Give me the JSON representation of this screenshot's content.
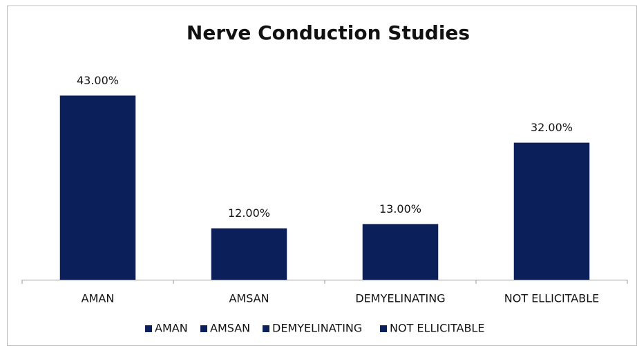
{
  "chart_data": {
    "type": "bar",
    "title": "Nerve Conduction Studies",
    "categories": [
      "AMAN",
      "AMSAN",
      "DEMYELINATING",
      "NOT ELLICITABLE"
    ],
    "values": [
      43,
      12,
      13,
      32
    ],
    "value_labels": [
      "43.00%",
      "12.00%",
      "13.00%",
      "32.00%"
    ],
    "color": "#0b1f5b",
    "ylim": [
      0,
      50
    ],
    "legend": "bottom"
  }
}
